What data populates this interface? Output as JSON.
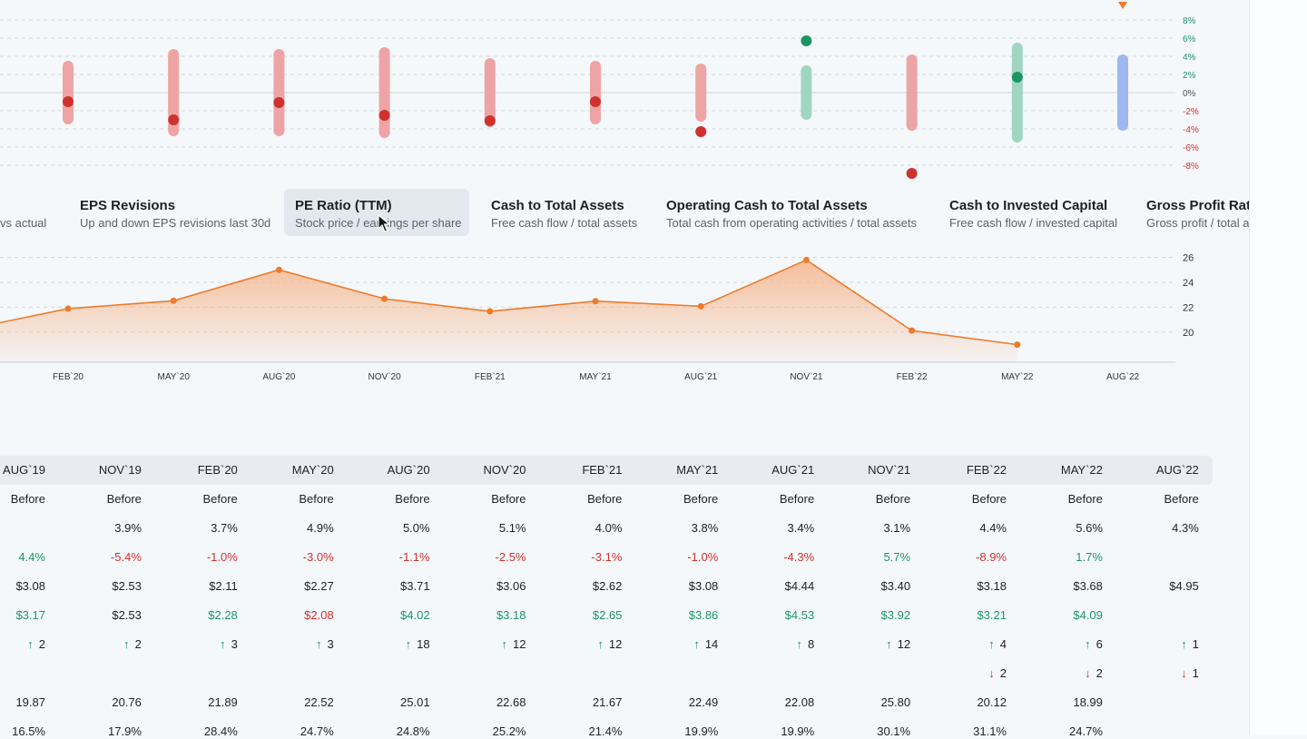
{
  "colors": {
    "negative": "#d0312d",
    "negative_bar": "#eea4a4",
    "positive": "#1e9466",
    "positive_bar": "#9fd6c2",
    "neutral_bar": "#9db8ee",
    "pe_line": "#ee7a2a",
    "pe_fill": "#f6b48a"
  },
  "chart_data": [
    {
      "type": "scatter",
      "y_ticks": [
        "8%",
        "6%",
        "4%",
        "2%",
        "0%",
        "-2%",
        "-4%",
        "-6%",
        "-8%"
      ],
      "ylim": [
        -9,
        10
      ],
      "series_ranges": [
        {
          "low": -3.5,
          "high": 3.5,
          "value": -1.0,
          "state": "negative"
        },
        {
          "low": -4.8,
          "high": 4.8,
          "value": -3.0,
          "state": "negative"
        },
        {
          "low": -4.8,
          "high": 4.8,
          "value": -1.1,
          "state": "negative"
        },
        {
          "low": -5.0,
          "high": 5.0,
          "value": -2.5,
          "state": "negative"
        },
        {
          "low": -3.8,
          "high": 3.8,
          "value": -3.1,
          "state": "negative"
        },
        {
          "low": -3.5,
          "high": 3.5,
          "value": -1.0,
          "state": "negative"
        },
        {
          "low": -3.2,
          "high": 3.2,
          "value": -4.3,
          "state": "negative"
        },
        {
          "low": -3.0,
          "high": 3.0,
          "value": 5.7,
          "state": "positive"
        },
        {
          "low": -4.2,
          "high": 4.2,
          "value": -8.9,
          "state": "negative"
        },
        {
          "low": -5.5,
          "high": 5.5,
          "value": 1.7,
          "state": "positive"
        },
        {
          "low": -4.2,
          "high": 4.2,
          "value": null,
          "state": "neutral",
          "marker": "above"
        }
      ]
    },
    {
      "type": "area",
      "x": [
        "FEB`20",
        "MAY`20",
        "AUG`20",
        "NOV`20",
        "FEB`21",
        "MAY`21",
        "AUG`21",
        "NOV`21",
        "FEB`22",
        "MAY`22",
        "AUG`22"
      ],
      "values": [
        21.89,
        22.52,
        25.01,
        22.68,
        21.67,
        22.49,
        22.08,
        25.8,
        20.12,
        18.99,
        null
      ],
      "previous_value": 20.76,
      "y_ticks": [
        "26",
        "24",
        "22",
        "20"
      ],
      "ylim": [
        17.5,
        27
      ]
    }
  ],
  "tabs": [
    {
      "title": "",
      "subtitle": "vs actual"
    },
    {
      "title": "EPS Revisions",
      "subtitle": "Up and down EPS revisions last 30d"
    },
    {
      "title": "PE Ratio (TTM)",
      "subtitle": "Stock price / earnings per share"
    },
    {
      "title": "Cash to Total Assets",
      "subtitle": "Free cash flow / total assets"
    },
    {
      "title": "Operating Cash to Total Assets",
      "subtitle": "Total cash from operating activities / total assets"
    },
    {
      "title": "Cash to Invested Capital",
      "subtitle": "Free cash flow / invested capital"
    },
    {
      "title": "Gross Profit Ratio",
      "subtitle": "Gross profit / total assets"
    }
  ],
  "table": {
    "columns": [
      "AUG`19",
      "NOV`19",
      "FEB`20",
      "MAY`20",
      "AUG`20",
      "NOV`20",
      "FEB`21",
      "MAY`21",
      "AUG`21",
      "NOV`21",
      "FEB`22",
      "MAY`22",
      "AUG`22"
    ],
    "rows": [
      {
        "cells": [
          "Before",
          "Before",
          "Before",
          "Before",
          "Before",
          "Before",
          "Before",
          "Before",
          "Before",
          "Before",
          "Before",
          "Before",
          "Before"
        ]
      },
      {
        "cells": [
          "",
          "3.9%",
          "3.7%",
          "4.9%",
          "5.0%",
          "5.1%",
          "4.0%",
          "3.8%",
          "3.4%",
          "3.1%",
          "4.4%",
          "5.6%",
          "4.3%"
        ]
      },
      {
        "cells": [
          "4.4%",
          "-5.4%",
          "-1.0%",
          "-3.0%",
          "-1.1%",
          "-2.5%",
          "-3.1%",
          "-1.0%",
          "-4.3%",
          "5.7%",
          "-8.9%",
          "1.7%",
          ""
        ],
        "states": [
          "pos",
          "neg",
          "neg",
          "neg",
          "neg",
          "neg",
          "neg",
          "neg",
          "neg",
          "pos",
          "neg",
          "pos",
          ""
        ]
      },
      {
        "cells": [
          "$3.08",
          "$2.53",
          "$2.11",
          "$2.27",
          "$3.71",
          "$3.06",
          "$2.62",
          "$3.08",
          "$4.44",
          "$3.40",
          "$3.18",
          "$3.68",
          "$4.95"
        ]
      },
      {
        "cells": [
          "$3.17",
          "$2.53",
          "$2.28",
          "$2.08",
          "$4.02",
          "$3.18",
          "$2.65",
          "$3.86",
          "$4.53",
          "$3.92",
          "$3.21",
          "$4.09",
          ""
        ],
        "states": [
          "pos",
          "",
          "pos",
          "neg",
          "pos",
          "pos",
          "pos",
          "pos",
          "pos",
          "pos",
          "pos",
          "pos",
          ""
        ]
      },
      {
        "cells": [
          "2",
          "2",
          "3",
          "3",
          "18",
          "12",
          "12",
          "14",
          "8",
          "12",
          "4",
          "6",
          "1"
        ],
        "arrow": "up"
      },
      {
        "cells": [
          "",
          "",
          "",
          "",
          "",
          "",
          "",
          "",
          "",
          "",
          "2",
          "2",
          "1"
        ],
        "arrow": "down"
      },
      {
        "cells": [
          "19.87",
          "20.76",
          "21.89",
          "22.52",
          "25.01",
          "22.68",
          "21.67",
          "22.49",
          "22.08",
          "25.80",
          "20.12",
          "18.99",
          ""
        ]
      },
      {
        "cells": [
          "16.5%",
          "17.9%",
          "28.4%",
          "24.7%",
          "24.8%",
          "25.2%",
          "21.4%",
          "19.9%",
          "19.9%",
          "30.1%",
          "31.1%",
          "24.7%",
          ""
        ]
      }
    ]
  }
}
